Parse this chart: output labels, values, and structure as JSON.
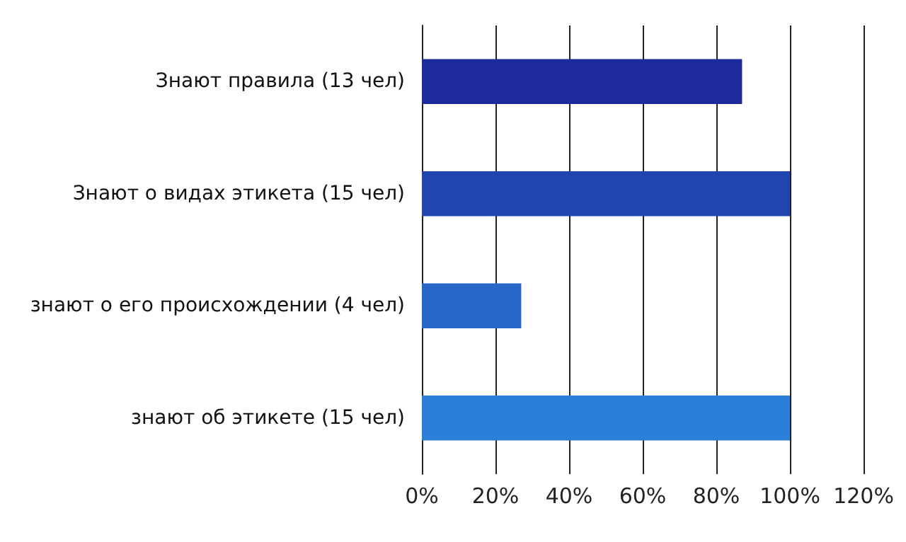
{
  "chart_data": {
    "type": "bar",
    "orientation": "horizontal",
    "categories": [
      "Знают правила (13 чел)",
      "Знают о видах этикета (15 чел)",
      "знают о его происхождении (4 чел)",
      "знают об этикете (15 чел)"
    ],
    "values": [
      87,
      100,
      27,
      100
    ],
    "colors": [
      "#1c2a9c",
      "#1f45b0",
      "#2866c8",
      "#2a80d8"
    ],
    "xlim": [
      0,
      120
    ],
    "xticks": [
      {
        "value": 0,
        "label": "0%"
      },
      {
        "value": 20,
        "label": "20%"
      },
      {
        "value": 40,
        "label": "40%"
      },
      {
        "value": 60,
        "label": "60%"
      },
      {
        "value": 80,
        "label": "80%"
      },
      {
        "value": 100,
        "label": "100%"
      },
      {
        "value": 120,
        "label": "120%"
      }
    ],
    "grid": "x"
  }
}
